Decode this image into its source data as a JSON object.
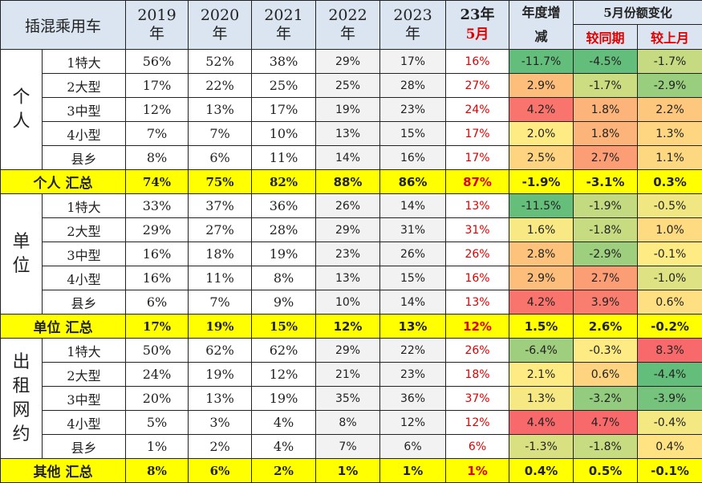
{
  "header": {
    "corner": "插混乘用车",
    "years": [
      {
        "top": "2019",
        "bottom": "年"
      },
      {
        "top": "2020",
        "bottom": "年"
      },
      {
        "top": "2021",
        "bottom": "年"
      },
      {
        "top": "2022",
        "bottom": "年"
      },
      {
        "top": "2023",
        "bottom": "年"
      }
    ],
    "current": {
      "top": "23年",
      "bottom": "5月"
    },
    "yoy": "年度增减",
    "change_group": "5月份额变化",
    "change_cols": [
      "较同期",
      "较上月"
    ]
  },
  "colors": {
    "header_bg": "#dbe5f1",
    "summary_bg": "#ffff00",
    "current_text": "#e00000",
    "heat_green": "#63be7b",
    "heat_yellow": "#ffeb84",
    "heat_red": "#f8696b"
  },
  "groups": [
    {
      "name": "个人",
      "rows": [
        {
          "label": "1特大",
          "values": [
            "56%",
            "52%",
            "38%",
            "29%",
            "17%",
            "16%"
          ],
          "changes": [
            "-11.7%",
            "-4.5%",
            "-1.7%"
          ]
        },
        {
          "label": "2大型",
          "values": [
            "17%",
            "22%",
            "25%",
            "25%",
            "28%",
            "27%"
          ],
          "changes": [
            "2.9%",
            "-1.7%",
            "-2.9%"
          ]
        },
        {
          "label": "3中型",
          "values": [
            "12%",
            "13%",
            "17%",
            "19%",
            "23%",
            "24%"
          ],
          "changes": [
            "4.2%",
            "1.8%",
            "2.2%"
          ]
        },
        {
          "label": "4小型",
          "values": [
            "7%",
            "7%",
            "10%",
            "13%",
            "15%",
            "17%"
          ],
          "changes": [
            "2.0%",
            "1.8%",
            "1.3%"
          ]
        },
        {
          "label": "县乡",
          "values": [
            "8%",
            "6%",
            "11%",
            "14%",
            "16%",
            "17%"
          ],
          "changes": [
            "2.5%",
            "2.7%",
            "1.1%"
          ]
        }
      ],
      "summary": {
        "label": "个人 汇总",
        "values": [
          "74%",
          "75%",
          "82%",
          "88%",
          "86%",
          "87%"
        ],
        "changes": [
          "-1.9%",
          "-3.1%",
          "0.3%"
        ]
      }
    },
    {
      "name": "单位",
      "rows": [
        {
          "label": "1特大",
          "values": [
            "33%",
            "37%",
            "36%",
            "26%",
            "14%",
            "13%"
          ],
          "changes": [
            "-11.5%",
            "-1.9%",
            "-0.5%"
          ]
        },
        {
          "label": "2大型",
          "values": [
            "29%",
            "27%",
            "28%",
            "29%",
            "31%",
            "31%"
          ],
          "changes": [
            "1.6%",
            "-1.8%",
            "1.0%"
          ]
        },
        {
          "label": "3中型",
          "values": [
            "16%",
            "18%",
            "19%",
            "23%",
            "26%",
            "26%"
          ],
          "changes": [
            "2.8%",
            "-2.9%",
            "-0.1%"
          ]
        },
        {
          "label": "4小型",
          "values": [
            "16%",
            "11%",
            "8%",
            "13%",
            "15%",
            "16%"
          ],
          "changes": [
            "2.9%",
            "2.7%",
            "-1.0%"
          ]
        },
        {
          "label": "县乡",
          "values": [
            "6%",
            "7%",
            "9%",
            "10%",
            "14%",
            "13%"
          ],
          "changes": [
            "4.2%",
            "3.9%",
            "0.6%"
          ]
        }
      ],
      "summary": {
        "label": "单位 汇总",
        "values": [
          "17%",
          "19%",
          "15%",
          "12%",
          "13%",
          "12%"
        ],
        "changes": [
          "1.5%",
          "2.6%",
          "-0.2%"
        ]
      }
    },
    {
      "name": "出租网约",
      "rows": [
        {
          "label": "1特大",
          "values": [
            "50%",
            "62%",
            "62%",
            "29%",
            "22%",
            "26%"
          ],
          "changes": [
            "-6.4%",
            "-0.3%",
            "8.3%"
          ]
        },
        {
          "label": "2大型",
          "values": [
            "24%",
            "19%",
            "12%",
            "21%",
            "23%",
            "18%"
          ],
          "changes": [
            "2.1%",
            "0.6%",
            "-4.4%"
          ]
        },
        {
          "label": "3中型",
          "values": [
            "20%",
            "13%",
            "19%",
            "35%",
            "36%",
            "37%"
          ],
          "changes": [
            "1.3%",
            "-3.2%",
            "-3.9%"
          ]
        },
        {
          "label": "4小型",
          "values": [
            "5%",
            "3%",
            "4%",
            "8%",
            "12%",
            "12%"
          ],
          "changes": [
            "4.4%",
            "4.7%",
            "-0.4%"
          ]
        },
        {
          "label": "县乡",
          "values": [
            "1%",
            "2%",
            "4%",
            "7%",
            "6%",
            "6%"
          ],
          "changes": [
            "-1.3%",
            "-1.8%",
            "0.4%"
          ]
        }
      ],
      "summary": {
        "label": "其他 汇总",
        "values": [
          "8%",
          "6%",
          "2%",
          "1%",
          "1%",
          "1%"
        ],
        "changes": [
          "0.4%",
          "0.5%",
          "-0.1%"
        ]
      }
    }
  ],
  "chart_data": {
    "type": "table",
    "title": "插混乘用车",
    "columns": [
      "2019年",
      "2020年",
      "2021年",
      "2022年",
      "2023年",
      "23年5月",
      "年度增减",
      "较同期",
      "较上月"
    ],
    "row_groups": [
      "个人",
      "单位",
      "出租网约"
    ],
    "row_labels": [
      "1特大",
      "2大型",
      "3中型",
      "4小型",
      "县乡"
    ]
  }
}
